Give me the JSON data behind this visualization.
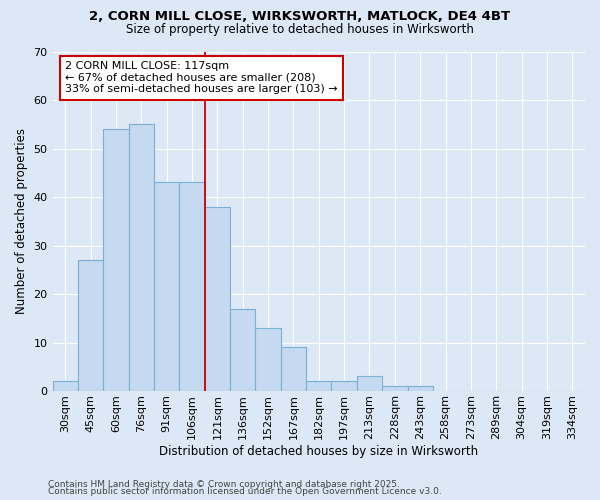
{
  "title1": "2, CORN MILL CLOSE, WIRKSWORTH, MATLOCK, DE4 4BT",
  "title2": "Size of property relative to detached houses in Wirksworth",
  "xlabel": "Distribution of detached houses by size in Wirksworth",
  "ylabel": "Number of detached properties",
  "categories": [
    "30sqm",
    "45sqm",
    "60sqm",
    "76sqm",
    "91sqm",
    "106sqm",
    "121sqm",
    "136sqm",
    "152sqm",
    "167sqm",
    "182sqm",
    "197sqm",
    "213sqm",
    "228sqm",
    "243sqm",
    "258sqm",
    "273sqm",
    "289sqm",
    "304sqm",
    "319sqm",
    "334sqm"
  ],
  "values": [
    2,
    27,
    54,
    55,
    43,
    43,
    38,
    17,
    13,
    9,
    2,
    2,
    3,
    1,
    1,
    0,
    0,
    0,
    0,
    0,
    0
  ],
  "bar_color": "#c5d9f0",
  "bar_edge_color": "#7bafd4",
  "background_color": "#dce8f5",
  "plot_bg_color": "#dce8f5",
  "vline_x_idx": 6,
  "vline_color": "#cc0000",
  "annotation_text": "2 CORN MILL CLOSE: 117sqm\n← 67% of detached houses are smaller (208)\n33% of semi-detached houses are larger (103) →",
  "annotation_box_color": "#ffffff",
  "annotation_box_edge": "#cc0000",
  "ylim": [
    0,
    70
  ],
  "yticks": [
    0,
    10,
    20,
    30,
    40,
    50,
    60,
    70
  ],
  "footer1": "Contains HM Land Registry data © Crown copyright and database right 2025.",
  "footer2": "Contains public sector information licensed under the Open Government Licence v3.0.",
  "grid_color": "#c8d8ea",
  "title1_fontsize": 9.5,
  "title2_fontsize": 8.5,
  "axis_label_fontsize": 8.5,
  "tick_fontsize": 8.0,
  "annotation_fontsize": 8.0,
  "footer_fontsize": 6.5
}
